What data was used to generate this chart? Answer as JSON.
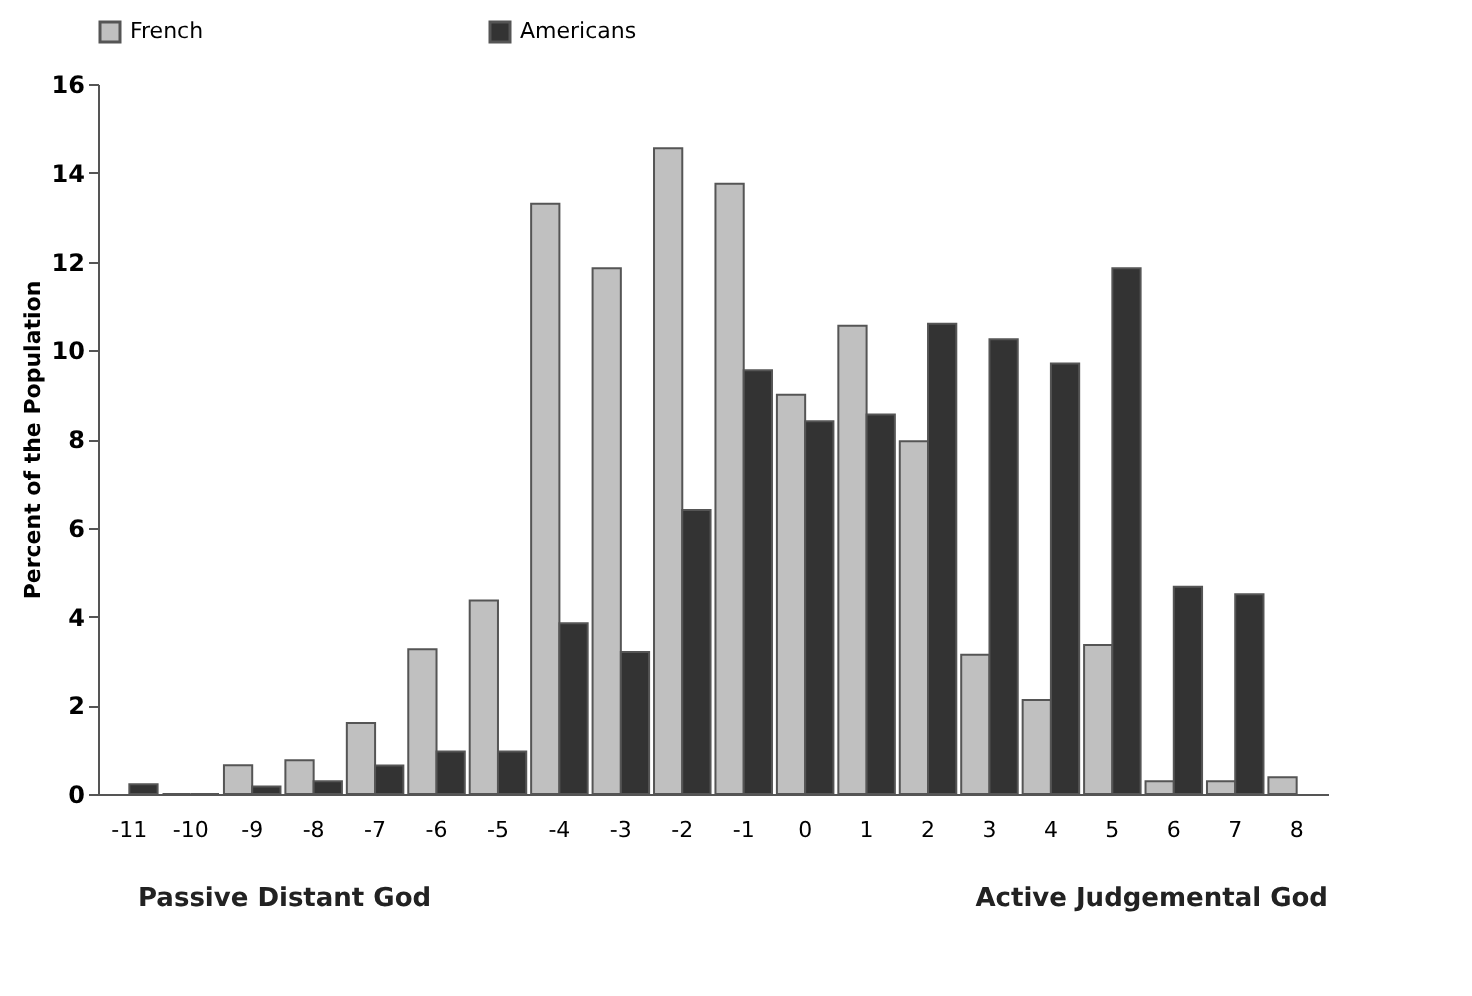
{
  "chart_data": {
    "type": "bar",
    "ylabel": "Percent of the Population",
    "categories": [
      "-11",
      "-10",
      "-9",
      "-8",
      "-7",
      "-6",
      "-5",
      "-4",
      "-3",
      "-2",
      "-1",
      "0",
      "1",
      "2",
      "3",
      "4",
      "5",
      "6",
      "7",
      "8"
    ],
    "series": [
      {
        "name": "French",
        "color": "#c0c0c0",
        "values": [
          null,
          0,
          0.65,
          0.76,
          1.6,
          3.26,
          4.36,
          13.3,
          11.85,
          14.55,
          13.75,
          9.0,
          10.55,
          7.95,
          3.14,
          2.12,
          3.36,
          0.29,
          0.29,
          0.38
        ]
      },
      {
        "name": "Americans",
        "color": "#333333",
        "values": [
          0.22,
          0,
          0.17,
          0.29,
          0.64,
          0.96,
          0.96,
          3.85,
          3.2,
          6.4,
          9.55,
          8.4,
          8.55,
          10.6,
          10.25,
          9.7,
          11.85,
          4.67,
          4.5,
          null
        ]
      }
    ],
    "ylim": [
      0,
      16
    ],
    "yticks": [
      0,
      2,
      4,
      6,
      8,
      10,
      12,
      14,
      16
    ],
    "grid": false,
    "legend": "top",
    "annotations": [
      "Passive Distant God",
      "Active Judgemental God"
    ]
  }
}
